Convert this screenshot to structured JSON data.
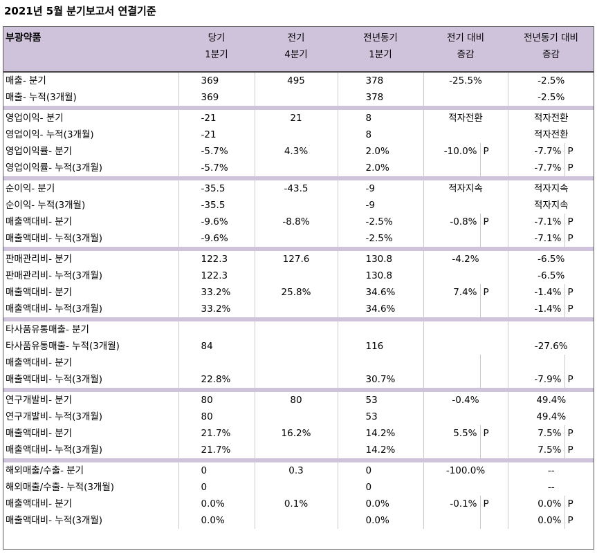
{
  "title": "2021년 5월 분기보고서 연결기준",
  "header": {
    "company": "부광약품",
    "cols": [
      {
        "l1": "당기",
        "l2": "1분기"
      },
      {
        "l1": "전기",
        "l2": "4분기"
      },
      {
        "l1": "전년동기",
        "l2": "1분기"
      },
      {
        "l1": "전기 대비",
        "l2": "증감"
      },
      {
        "l1": "전년동기 대비",
        "l2": "증감"
      }
    ]
  },
  "sections": [
    {
      "rows": [
        {
          "label": "매출- 분기",
          "cur": "369",
          "prev": "495",
          "yoy": "378",
          "d_prev": "-25.5%",
          "d_prev_p": "",
          "d_yoy": "-2.5%",
          "d_yoy_p": "",
          "mode": "plain"
        },
        {
          "label": "매출- 누적(3개월)",
          "cur": "369",
          "prev": "",
          "yoy": "378",
          "d_prev": "",
          "d_prev_p": "",
          "d_yoy": "-2.5%",
          "d_yoy_p": "",
          "mode": "plain"
        }
      ]
    },
    {
      "rows": [
        {
          "label": "영업이익- 분기",
          "cur": "-21",
          "prev": "21",
          "yoy": "8",
          "d_prev": "적자전환",
          "d_prev_p": "",
          "d_yoy": "적자전환",
          "d_yoy_p": "",
          "mode": "plain"
        },
        {
          "label": "영업이익- 누적(3개월)",
          "cur": "-21",
          "prev": "",
          "yoy": "8",
          "d_prev": "",
          "d_prev_p": "",
          "d_yoy": "적자전환",
          "d_yoy_p": "",
          "mode": "plain"
        },
        {
          "label": "영업이익률- 분기",
          "cur": "-5.7%",
          "prev": "4.3%",
          "yoy": "2.0%",
          "d_prev": "-10.0%",
          "d_prev_p": "P",
          "d_yoy": "-7.7%",
          "d_yoy_p": "P",
          "mode": "split"
        },
        {
          "label": "영업이익률- 누적(3개월)",
          "cur": "-5.7%",
          "prev": "",
          "yoy": "2.0%",
          "d_prev": "",
          "d_prev_p": "",
          "d_yoy": "-7.7%",
          "d_yoy_p": "P",
          "mode": "split"
        }
      ]
    },
    {
      "rows": [
        {
          "label": "순이익- 분기",
          "cur": "-35.5",
          "prev": "-43.5",
          "yoy": "-9",
          "d_prev": "적자지속",
          "d_prev_p": "",
          "d_yoy": "적자지속",
          "d_yoy_p": "",
          "mode": "plain"
        },
        {
          "label": "순이익- 누적(3개월)",
          "cur": "-35.5",
          "prev": "",
          "yoy": "-9",
          "d_prev": "",
          "d_prev_p": "",
          "d_yoy": "적자지속",
          "d_yoy_p": "",
          "mode": "plain"
        },
        {
          "label": "매출액대비- 분기",
          "cur": "-9.6%",
          "prev": "-8.8%",
          "yoy": "-2.5%",
          "d_prev": "-0.8%",
          "d_prev_p": "P",
          "d_yoy": "-7.1%",
          "d_yoy_p": "P",
          "mode": "split"
        },
        {
          "label": "매출액대비- 누적(3개월)",
          "cur": "-9.6%",
          "prev": "",
          "yoy": "-2.5%",
          "d_prev": "",
          "d_prev_p": "",
          "d_yoy": "-7.1%",
          "d_yoy_p": "P",
          "mode": "split"
        }
      ]
    },
    {
      "rows": [
        {
          "label": "판매관리비- 분기",
          "cur": "122.3",
          "prev": "127.6",
          "yoy": "130.8",
          "d_prev": "-4.2%",
          "d_prev_p": "",
          "d_yoy": "-6.5%",
          "d_yoy_p": "",
          "mode": "plain"
        },
        {
          "label": "판매관리비- 누적(3개월)",
          "cur": "122.3",
          "prev": "",
          "yoy": "130.8",
          "d_prev": "",
          "d_prev_p": "",
          "d_yoy": "-6.5%",
          "d_yoy_p": "",
          "mode": "plain"
        },
        {
          "label": "매출액대비- 분기",
          "cur": "33.2%",
          "prev": "25.8%",
          "yoy": "34.6%",
          "d_prev": "7.4%",
          "d_prev_p": "P",
          "d_yoy": "-1.4%",
          "d_yoy_p": "P",
          "mode": "split"
        },
        {
          "label": "매출액대비- 누적(3개월)",
          "cur": "33.2%",
          "prev": "",
          "yoy": "34.6%",
          "d_prev": "",
          "d_prev_p": "",
          "d_yoy": "-1.4%",
          "d_yoy_p": "P",
          "mode": "split"
        }
      ]
    },
    {
      "rows": [
        {
          "label": "타사품유통매출- 분기",
          "cur": "",
          "prev": "",
          "yoy": "",
          "d_prev": "",
          "d_prev_p": "",
          "d_yoy": "",
          "d_yoy_p": "",
          "mode": "plain"
        },
        {
          "label": "타사품유통매출- 누적(3개월)",
          "cur": "84",
          "prev": "",
          "yoy": "116",
          "d_prev": "",
          "d_prev_p": "",
          "d_yoy": "-27.6%",
          "d_yoy_p": "",
          "mode": "plain"
        },
        {
          "label": "매출액대비- 분기",
          "cur": "",
          "prev": "",
          "yoy": "",
          "d_prev": "",
          "d_prev_p": "",
          "d_yoy": "",
          "d_yoy_p": "",
          "mode": "split"
        },
        {
          "label": "매출액대비- 누적(3개월)",
          "cur": "22.8%",
          "prev": "",
          "yoy": "30.7%",
          "d_prev": "",
          "d_prev_p": "",
          "d_yoy": "-7.9%",
          "d_yoy_p": "P",
          "mode": "split"
        }
      ]
    },
    {
      "rows": [
        {
          "label": "연구개발비- 분기",
          "cur": "80",
          "prev": "80",
          "yoy": "53",
          "d_prev": "-0.4%",
          "d_prev_p": "",
          "d_yoy": "49.4%",
          "d_yoy_p": "",
          "mode": "plain"
        },
        {
          "label": "연구개발비- 누적(3개월)",
          "cur": "80",
          "prev": "",
          "yoy": "53",
          "d_prev": "",
          "d_prev_p": "",
          "d_yoy": "49.4%",
          "d_yoy_p": "",
          "mode": "plain"
        },
        {
          "label": "매출액대비- 분기",
          "cur": "21.7%",
          "prev": "16.2%",
          "yoy": "14.2%",
          "d_prev": "5.5%",
          "d_prev_p": "P",
          "d_yoy": "7.5%",
          "d_yoy_p": "P",
          "mode": "split"
        },
        {
          "label": "매출액대비- 누적(3개월)",
          "cur": "21.7%",
          "prev": "",
          "yoy": "14.2%",
          "d_prev": "",
          "d_prev_p": "",
          "d_yoy": "7.5%",
          "d_yoy_p": "P",
          "mode": "split"
        }
      ]
    },
    {
      "rows": [
        {
          "label": "해외매출/수출- 분기",
          "cur": "0",
          "prev": "0.3",
          "yoy": "0",
          "d_prev": "-100.0%",
          "d_prev_p": "",
          "d_yoy": "--",
          "d_yoy_p": "",
          "mode": "plain"
        },
        {
          "label": "해외매출/수출- 누적(3개월)",
          "cur": "0",
          "prev": "",
          "yoy": "0",
          "d_prev": "",
          "d_prev_p": "",
          "d_yoy": "--",
          "d_yoy_p": "",
          "mode": "plain"
        },
        {
          "label": "매출액대비- 분기",
          "cur": "0.0%",
          "prev": "0.1%",
          "yoy": "0.0%",
          "d_prev": "-0.1%",
          "d_prev_p": "P",
          "d_yoy": "0.0%",
          "d_yoy_p": "P",
          "mode": "split"
        },
        {
          "label": "매출액대비- 누적(3개월)",
          "cur": "0.0%",
          "prev": "",
          "yoy": "0.0%",
          "d_prev": "",
          "d_prev_p": "",
          "d_yoy": "0.0%",
          "d_yoy_p": "P",
          "mode": "split"
        }
      ]
    }
  ]
}
